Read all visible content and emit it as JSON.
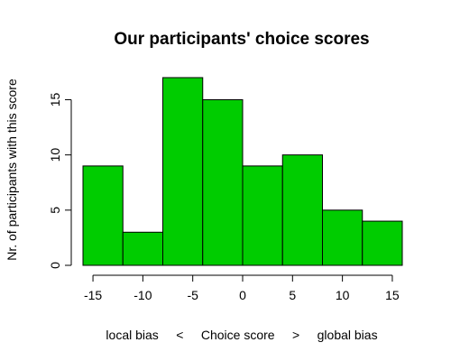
{
  "chart_data": {
    "type": "bar",
    "title": "Our participants' choice scores",
    "xlabel": "local bias     <     Choice score     >     global bias",
    "ylabel": "Nr. of participants with this score",
    "bins": [
      {
        "from": -16,
        "to": -12,
        "count": 9
      },
      {
        "from": -12,
        "to": -8,
        "count": 3
      },
      {
        "from": -8,
        "to": -4,
        "count": 17
      },
      {
        "from": -4,
        "to": 0,
        "count": 15
      },
      {
        "from": 0,
        "to": 4,
        "count": 9
      },
      {
        "from": 4,
        "to": 8,
        "count": 10
      },
      {
        "from": 8,
        "to": 12,
        "count": 5
      },
      {
        "from": 12,
        "to": 16,
        "count": 4
      }
    ],
    "x_ticks": [
      -15,
      -10,
      -5,
      0,
      5,
      10,
      15
    ],
    "y_ticks": [
      0,
      5,
      10,
      15
    ],
    "xlim": [
      -16,
      16
    ],
    "ylim": [
      0,
      17
    ],
    "grid": false,
    "colors": {
      "bar_fill": "#00cc00",
      "bar_stroke": "#000000"
    }
  }
}
